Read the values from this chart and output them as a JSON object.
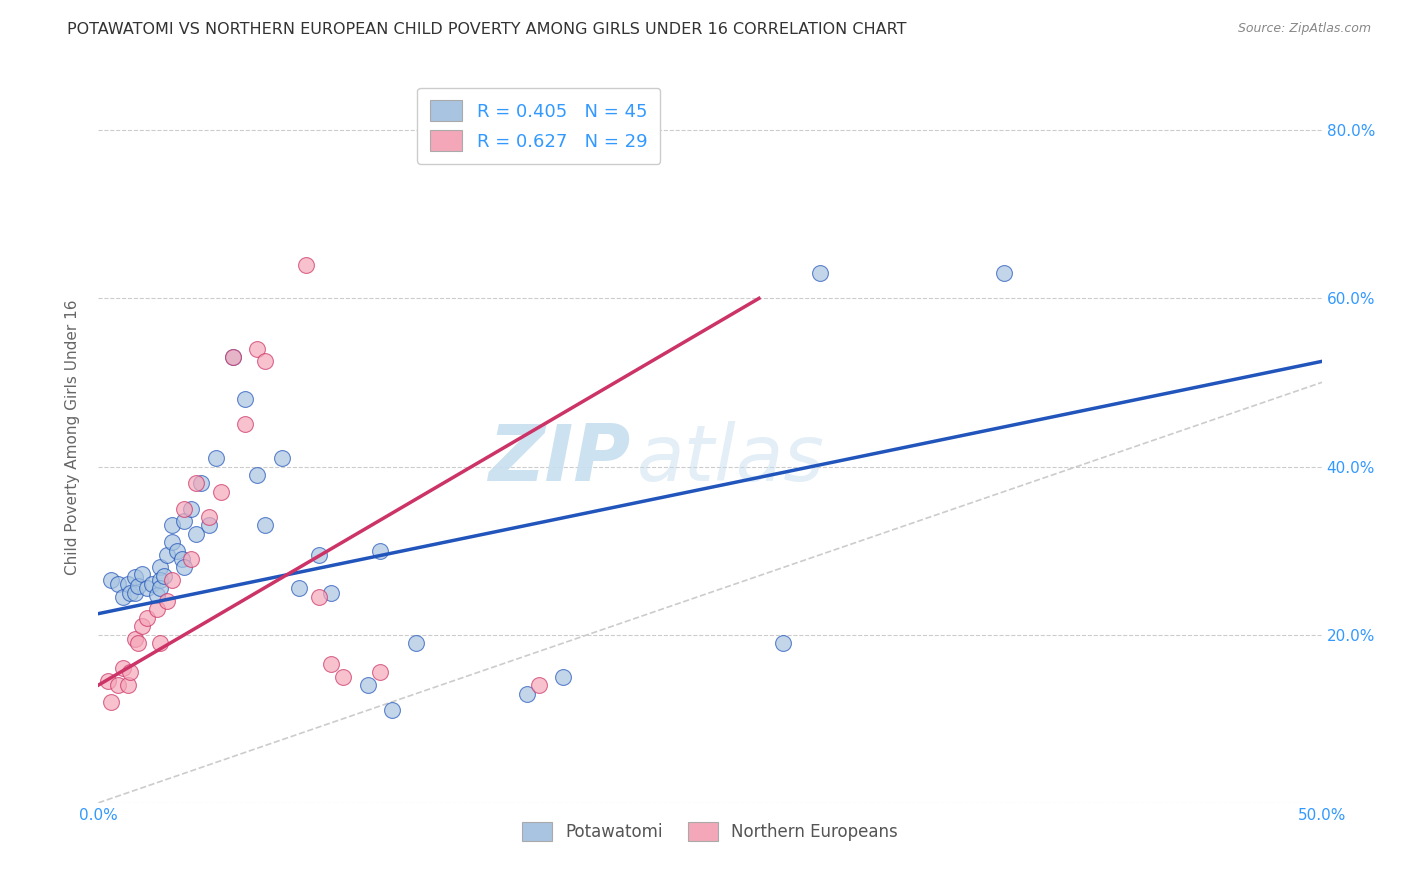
{
  "title": "POTAWATOMI VS NORTHERN EUROPEAN CHILD POVERTY AMONG GIRLS UNDER 16 CORRELATION CHART",
  "source": "Source: ZipAtlas.com",
  "ylabel": "Child Poverty Among Girls Under 16",
  "xlim": [
    0.0,
    0.5
  ],
  "ylim": [
    0.0,
    0.87
  ],
  "xticks": [
    0.0,
    0.5
  ],
  "xticklabels": [
    "0.0%",
    "50.0%"
  ],
  "yticks": [
    0.0,
    0.2,
    0.4,
    0.6,
    0.8
  ],
  "yticklabels": [
    "",
    "20.0%",
    "40.0%",
    "60.0%",
    "80.0%"
  ],
  "legend1_r": "0.405",
  "legend1_n": "45",
  "legend2_r": "0.627",
  "legend2_n": "29",
  "legend_label1_bottom": "Potawatomi",
  "legend_label2_bottom": "Northern Europeans",
  "blue_color": "#a8c4e0",
  "pink_color": "#f4a7b9",
  "blue_line_color": "#2255bb",
  "pink_line_color": "#cc3366",
  "ref_line_color": "#cccccc",
  "background_color": "#ffffff",
  "grid_color": "#cccccc",
  "title_color": "#333333",
  "axis_label_color": "#3399ff",
  "watermark_color": "#c8dff0",
  "blue_scatter_x": [
    0.005,
    0.008,
    0.01,
    0.012,
    0.013,
    0.015,
    0.015,
    0.016,
    0.018,
    0.02,
    0.022,
    0.024,
    0.025,
    0.025,
    0.025,
    0.027,
    0.028,
    0.03,
    0.03,
    0.032,
    0.034,
    0.035,
    0.035,
    0.038,
    0.04,
    0.042,
    0.045,
    0.048,
    0.055,
    0.06,
    0.065,
    0.068,
    0.075,
    0.082,
    0.09,
    0.095,
    0.11,
    0.115,
    0.12,
    0.13,
    0.175,
    0.19,
    0.28,
    0.295,
    0.37
  ],
  "blue_scatter_y": [
    0.265,
    0.26,
    0.245,
    0.26,
    0.25,
    0.268,
    0.25,
    0.258,
    0.272,
    0.255,
    0.26,
    0.247,
    0.28,
    0.265,
    0.255,
    0.27,
    0.295,
    0.31,
    0.33,
    0.3,
    0.29,
    0.335,
    0.28,
    0.35,
    0.32,
    0.38,
    0.33,
    0.41,
    0.53,
    0.48,
    0.39,
    0.33,
    0.41,
    0.255,
    0.295,
    0.25,
    0.14,
    0.3,
    0.11,
    0.19,
    0.13,
    0.15,
    0.19,
    0.63,
    0.63
  ],
  "pink_scatter_x": [
    0.004,
    0.005,
    0.008,
    0.01,
    0.012,
    0.013,
    0.015,
    0.016,
    0.018,
    0.02,
    0.024,
    0.025,
    0.028,
    0.03,
    0.035,
    0.038,
    0.04,
    0.045,
    0.05,
    0.055,
    0.06,
    0.065,
    0.068,
    0.085,
    0.09,
    0.095,
    0.1,
    0.115,
    0.18
  ],
  "pink_scatter_y": [
    0.145,
    0.12,
    0.14,
    0.16,
    0.14,
    0.155,
    0.195,
    0.19,
    0.21,
    0.22,
    0.23,
    0.19,
    0.24,
    0.265,
    0.35,
    0.29,
    0.38,
    0.34,
    0.37,
    0.53,
    0.45,
    0.54,
    0.525,
    0.64,
    0.245,
    0.165,
    0.15,
    0.155,
    0.14
  ],
  "blue_trend_x0": 0.0,
  "blue_trend_x1": 0.5,
  "blue_trend_y0": 0.225,
  "blue_trend_y1": 0.525,
  "pink_trend_x0": 0.0,
  "pink_trend_x1": 0.27,
  "pink_trend_y0": 0.14,
  "pink_trend_y1": 0.6
}
